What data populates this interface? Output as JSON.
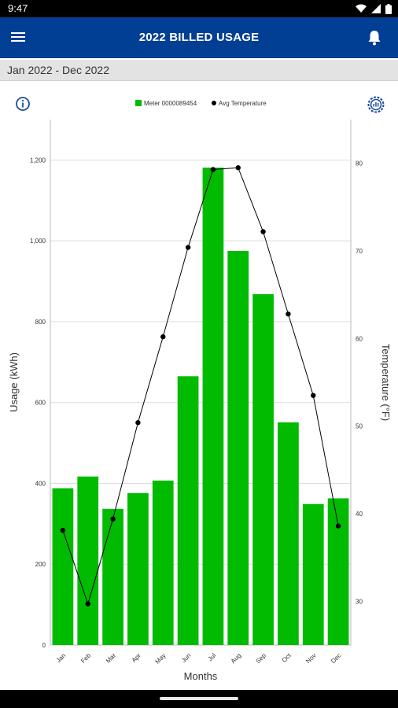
{
  "status_bar": {
    "time": "9:47"
  },
  "app_bar": {
    "title": "2022 BILLED USAGE"
  },
  "date_range": "Jan 2022 - Dec 2022",
  "colors": {
    "bar": "#00bb00",
    "line": "#000000",
    "app_bar": "#003f93"
  },
  "chart_data": {
    "type": "bar",
    "categories": [
      "Jan",
      "Feb",
      "Mar",
      "Apr",
      "May",
      "Jun",
      "Jul",
      "Aug",
      "Sep",
      "Oct",
      "Nov",
      "Dec"
    ],
    "series": [
      {
        "name": "Meter 0000089454",
        "type": "bar",
        "axis": "left",
        "values": [
          388,
          417,
          337,
          376,
          407,
          665,
          1181,
          975,
          868,
          551,
          349,
          363
        ]
      },
      {
        "name": "Avg Temperature",
        "type": "line",
        "axis": "right",
        "values": [
          38.1,
          29.7,
          39.4,
          50.4,
          60.2,
          70.4,
          79.3,
          79.5,
          72.2,
          62.8,
          53.5,
          38.6
        ]
      }
    ],
    "xlabel": "Months",
    "ylabel": "Usage (kWh)",
    "y2label": "Temperature (°F)",
    "ylim": [
      0,
      1300
    ],
    "y2lim": [
      25,
      85
    ],
    "yticks": [
      "0",
      "200",
      "400",
      "600",
      "800",
      "1,000",
      "1,200"
    ],
    "y2ticks": [
      "30",
      "40",
      "50",
      "60",
      "70",
      "80"
    ],
    "grid": true,
    "legend": "top"
  }
}
